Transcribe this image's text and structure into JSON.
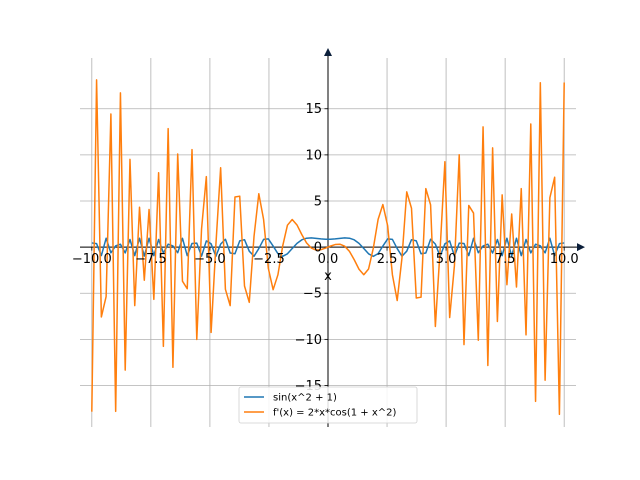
{
  "chart_data": {
    "type": "line",
    "title": "",
    "xlabel": "x",
    "ylabel": "",
    "xlim": [
      -10.5,
      10.5
    ],
    "ylim": [
      -19.5,
      20.5
    ],
    "grid": true,
    "legend_position": "lower center",
    "x_ticks": [
      -10.0,
      -7.5,
      -5.0,
      -2.5,
      0.0,
      2.5,
      5.0,
      7.5,
      10.0
    ],
    "x_tick_labels": [
      "−10.0",
      "−7.5",
      "−5.0",
      "−2.5",
      "0.0",
      "2.5",
      "5.0",
      "7.5",
      "10.0"
    ],
    "y_ticks": [
      -15,
      -10,
      -5,
      0,
      5,
      10,
      15
    ],
    "y_tick_labels": [
      "−15",
      "−10",
      "−5",
      "0",
      "5",
      "10",
      "15"
    ],
    "x_range": [
      -10,
      10
    ],
    "sample_count": 100,
    "series": [
      {
        "name": "sin(x^2 + 1)",
        "expression": "sin(x^2 + 1)",
        "color": "#1f77b4"
      },
      {
        "name": "f'(x) = 2*x*cos(1 + x^2)",
        "expression": "2*x*cos(1 + x^2)",
        "color": "#ff7f0e"
      }
    ]
  }
}
